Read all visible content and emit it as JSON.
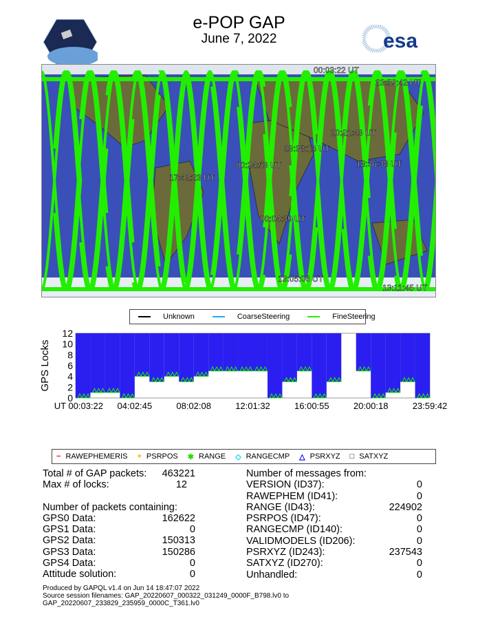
{
  "header": {
    "title": "e-POP GAP",
    "date": "June 7, 2022",
    "left_logo": "CASSIOPE",
    "right_logo": "esa"
  },
  "map": {
    "labels": [
      {
        "text": "00:03:22 UT"
      },
      {
        "text": "23:59:42 UT"
      },
      {
        "text": "20:21:43 UT"
      },
      {
        "text": "23:38:14 UT"
      },
      {
        "text": "00:24:53 UT"
      },
      {
        "text": "18:36:38 UT"
      },
      {
        "text": "17:42:23 UT"
      },
      {
        "text": "00:04:39 UT"
      },
      {
        "text": "13:05:06 UT"
      },
      {
        "text": "13:11:45 UT"
      }
    ],
    "colors": {
      "ocean": "#3a4fb8",
      "land": "#6b6a3a",
      "fine": "#22ee00",
      "coarse": "#1ea8ff"
    }
  },
  "legend_mode": [
    {
      "label": "Unknown",
      "color": "#000000"
    },
    {
      "label": "CoarseSteering",
      "color": "#1ea8ff"
    },
    {
      "label": "FineSteering",
      "color": "#22ee00"
    }
  ],
  "legend_msg": [
    {
      "label": "RAWEPHEMERIS",
      "symbol": "−",
      "color": "#ff0000"
    },
    {
      "label": "PSRPOS",
      "symbol": "+",
      "color": "#ffaa00"
    },
    {
      "label": "RANGE",
      "symbol": "✱",
      "color": "#22dd00"
    },
    {
      "label": "RANGECMP",
      "symbol": "◇",
      "color": "#00ccff"
    },
    {
      "label": "PSRXYZ",
      "symbol": "△",
      "color": "#0000ee"
    },
    {
      "label": "SATXYZ",
      "symbol": "□",
      "color": "#000000"
    }
  ],
  "chart_data": {
    "type": "scatter",
    "title": "",
    "ylabel": "GPS Locks",
    "ylim": [
      0,
      12
    ],
    "yticks": [
      "0",
      "2",
      "4",
      "6",
      "8",
      "10",
      "12"
    ],
    "xticks": [
      "UT 00:03:22",
      "04:02:45",
      "08:02:08",
      "12:01:32",
      "16:00:55",
      "20:00:18",
      "23:59:42"
    ],
    "x_hours": [
      0,
      1,
      2,
      3,
      4,
      5,
      6,
      7,
      8,
      9,
      10,
      11,
      12,
      13,
      14,
      15,
      16,
      17,
      18,
      19,
      20,
      21,
      22,
      23
    ],
    "series": [
      {
        "name": "PSRXYZ",
        "min_locks": [
          0,
          1,
          1,
          0,
          4,
          3,
          4,
          3,
          4,
          5,
          5,
          5,
          5,
          0,
          3,
          5,
          0,
          3,
          null,
          5,
          0,
          1,
          3,
          0
        ],
        "max_locks": [
          12,
          12,
          12,
          12,
          12,
          12,
          12,
          12,
          12,
          12,
          12,
          12,
          12,
          12,
          12,
          12,
          12,
          12,
          null,
          12,
          12,
          12,
          12,
          12
        ]
      }
    ]
  },
  "stats_left": {
    "total_label": "Total # of GAP packets:",
    "total": "463221",
    "max_label": "Max # of locks:",
    "max": "12",
    "containing_label": "Number of packets containing:",
    "rows": [
      {
        "label": "GPS0 Data:",
        "value": "162622"
      },
      {
        "label": "GPS1 Data:",
        "value": "0"
      },
      {
        "label": "GPS2 Data:",
        "value": "150313"
      },
      {
        "label": "GPS3 Data:",
        "value": "150286"
      },
      {
        "label": "GPS4 Data:",
        "value": "0"
      },
      {
        "label": "Attitude solution:",
        "value": "0"
      }
    ]
  },
  "stats_right": {
    "heading": "Number of messages from:",
    "rows": [
      {
        "label": "VERSION (ID37):",
        "value": "0"
      },
      {
        "label": "RAWEPHEM (ID41):",
        "value": "0"
      },
      {
        "label": "RANGE (ID43):",
        "value": "224902"
      },
      {
        "label": "PSRPOS (ID47):",
        "value": "0"
      },
      {
        "label": "RANGECMP (ID140):",
        "value": "0"
      },
      {
        "label": "VALIDMODELS (ID206):",
        "value": "0"
      },
      {
        "label": "PSRXYZ (ID243):",
        "value": "237543"
      },
      {
        "label": "SATXYZ (ID270):",
        "value": "0"
      },
      {
        "label": "Unhandled:",
        "value": "0"
      }
    ]
  },
  "footer": {
    "produced": "Produced by GAPQL v1.4 on Jun 14 18:47:07 2022",
    "source1": "Source session filenames: GAP_20220607_000322_031249_0000F_B798.lv0 to",
    "source2": "GAP_20220607_233829_235959_0000C_T361.lv0"
  }
}
